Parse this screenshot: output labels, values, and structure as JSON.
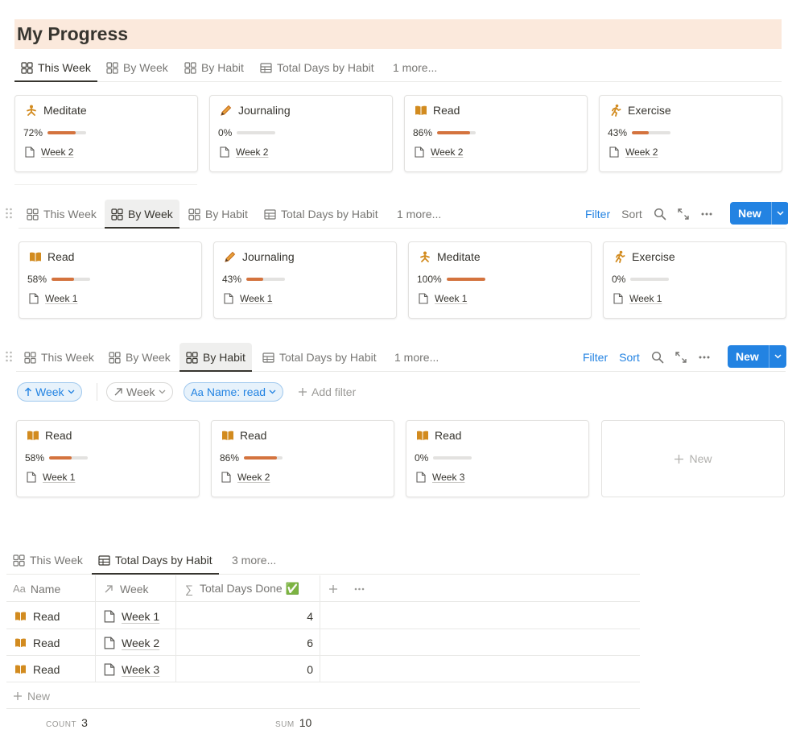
{
  "page": {
    "title": "My Progress"
  },
  "view1": {
    "tabs": [
      {
        "label": "This Week"
      },
      {
        "label": "By Week"
      },
      {
        "label": "By Habit"
      },
      {
        "label": "Total Days by Habit"
      },
      {
        "label": "1 more..."
      }
    ],
    "cards": [
      {
        "name": "Meditate",
        "pct_label": "72%",
        "progress": 0.72,
        "week": "Week 2",
        "icon": "meditate-icon"
      },
      {
        "name": "Journaling",
        "pct_label": "0%",
        "progress": 0.0,
        "week": "Week 2",
        "icon": "pencil-icon"
      },
      {
        "name": "Read",
        "pct_label": "86%",
        "progress": 0.86,
        "week": "Week 2",
        "icon": "book-icon"
      },
      {
        "name": "Exercise",
        "pct_label": "43%",
        "progress": 0.43,
        "week": "Week 2",
        "icon": "runner-icon"
      }
    ]
  },
  "view2": {
    "tabs": [
      {
        "label": "This Week"
      },
      {
        "label": "By Week"
      },
      {
        "label": "By Habit"
      },
      {
        "label": "Total Days by Habit"
      },
      {
        "label": "1 more..."
      }
    ],
    "toolbar": {
      "filter": "Filter",
      "sort": "Sort",
      "new": "New"
    },
    "cards": [
      {
        "name": "Read",
        "pct_label": "58%",
        "progress": 0.58,
        "week": "Week 1",
        "icon": "book-icon"
      },
      {
        "name": "Journaling",
        "pct_label": "43%",
        "progress": 0.43,
        "week": "Week 1",
        "icon": "pencil-icon"
      },
      {
        "name": "Meditate",
        "pct_label": "100%",
        "progress": 1.0,
        "week": "Week 1",
        "icon": "meditate-icon"
      },
      {
        "name": "Exercise",
        "pct_label": "0%",
        "progress": 0.0,
        "week": "Week 1",
        "icon": "runner-icon"
      }
    ]
  },
  "view3": {
    "tabs": [
      {
        "label": "This Week"
      },
      {
        "label": "By Week"
      },
      {
        "label": "By Habit"
      },
      {
        "label": "Total Days by Habit"
      },
      {
        "label": "1 more..."
      }
    ],
    "toolbar": {
      "filter": "Filter",
      "sort": "Sort",
      "new": "New"
    },
    "filters": {
      "sort_pill": "Week",
      "week_pill": "Week",
      "name_pill": "Name: read",
      "add_filter": "Add filter"
    },
    "cards": [
      {
        "name": "Read",
        "pct_label": "58%",
        "progress": 0.58,
        "week": "Week 1",
        "icon": "book-icon"
      },
      {
        "name": "Read",
        "pct_label": "86%",
        "progress": 0.86,
        "week": "Week 2",
        "icon": "book-icon"
      },
      {
        "name": "Read",
        "pct_label": "0%",
        "progress": 0.0,
        "week": "Week 3",
        "icon": "book-icon"
      }
    ],
    "new_card": "New"
  },
  "view4": {
    "tabs": [
      {
        "label": "This Week"
      },
      {
        "label": "Total Days by Habit"
      },
      {
        "label": "3 more..."
      }
    ],
    "columns": {
      "name": "Name",
      "week": "Week",
      "total": "Total Days Done ✅"
    },
    "rows": [
      {
        "name": "Read",
        "week": "Week 1",
        "total": "4"
      },
      {
        "name": "Read",
        "week": "Week 2",
        "total": "6"
      },
      {
        "name": "Read",
        "week": "Week 3",
        "total": "0"
      }
    ],
    "new_row": "New",
    "footer": {
      "count_label": "COUNT",
      "count": "3",
      "sum_label": "SUM",
      "sum": "10"
    }
  },
  "colors": {
    "accent": "#2383e2",
    "progress": "#d4733e",
    "title_bg": "#fbe9dc"
  }
}
